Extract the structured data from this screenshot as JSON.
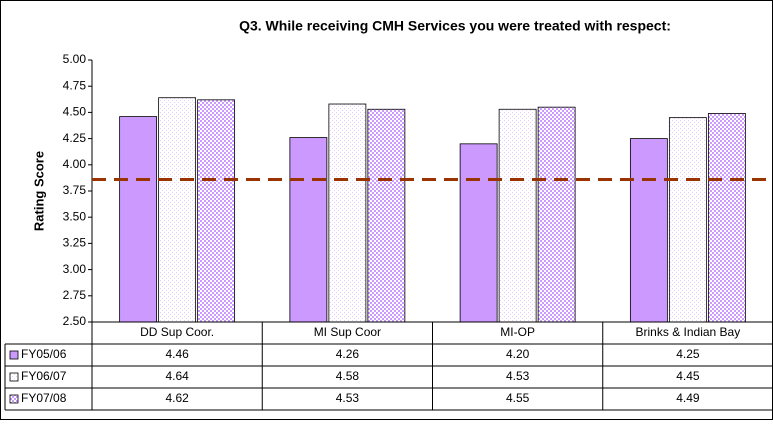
{
  "chart_data": {
    "type": "bar",
    "title": "Q3. While receiving CMH Services you were treated with respect:",
    "y_label": "Rating Score",
    "categories": [
      "DD Sup Coor.",
      "MI Sup Coor",
      "MI-OP",
      "Brinks & Indian Bay"
    ],
    "series": [
      {
        "name": "FY05/06",
        "color": "#cc99ff",
        "pattern": "solid",
        "values": [
          4.46,
          4.26,
          4.2,
          4.25
        ],
        "value_labels": [
          "4.46",
          "4.26",
          "4.20",
          "4.25"
        ]
      },
      {
        "name": "FY06/07",
        "color": "#e6ccff",
        "pattern": "dots",
        "values": [
          4.64,
          4.58,
          4.53,
          4.45
        ],
        "value_labels": [
          "4.64",
          "4.58",
          "4.53",
          "4.45"
        ]
      },
      {
        "name": "FY07/08",
        "color": "#cc99ff",
        "pattern": "checker",
        "values": [
          4.62,
          4.53,
          4.55,
          4.49
        ],
        "value_labels": [
          "4.62",
          "4.53",
          "4.55",
          "4.49"
        ]
      }
    ],
    "reference_line": {
      "value": 3.86,
      "color": "#993300"
    },
    "ylim": [
      2.5,
      5.0
    ],
    "yticks": [
      {
        "value": 2.5,
        "label": "2.50"
      },
      {
        "value": 2.75,
        "label": "2.75"
      },
      {
        "value": 3.0,
        "label": "3.00"
      },
      {
        "value": 3.25,
        "label": "3.25"
      },
      {
        "value": 3.5,
        "label": "3.50"
      },
      {
        "value": 3.75,
        "label": "3.75"
      },
      {
        "value": 4.0,
        "label": "4.00"
      },
      {
        "value": 4.25,
        "label": "4.25"
      },
      {
        "value": 4.5,
        "label": "4.50"
      },
      {
        "value": 4.75,
        "label": "4.75"
      },
      {
        "value": 5.0,
        "label": "5.00"
      }
    ]
  }
}
